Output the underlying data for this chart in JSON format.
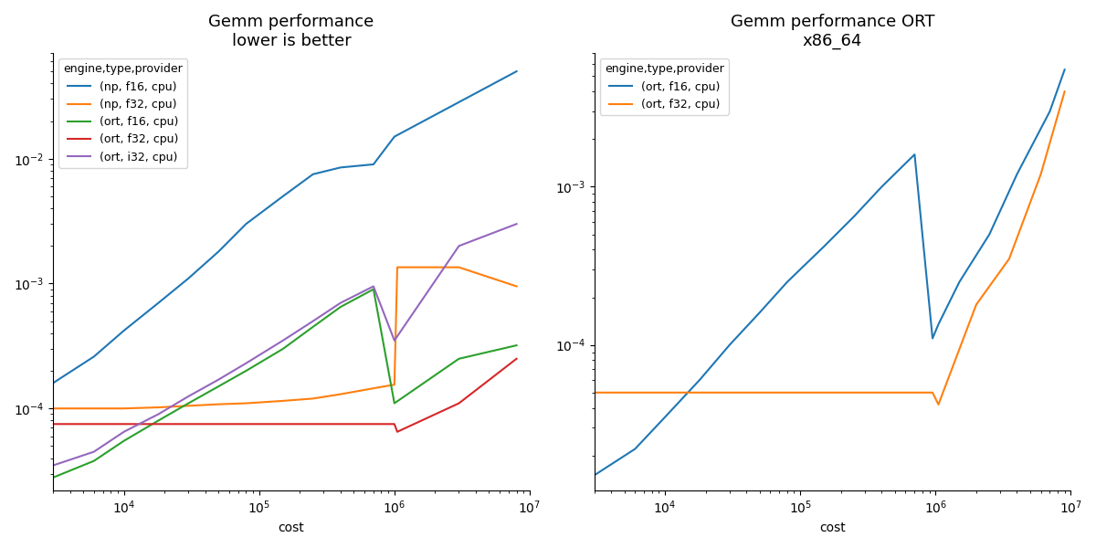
{
  "title_left": "Gemm performance\nlower is better",
  "title_right": "Gemm performance ORT\nx86_64",
  "xlabel": "cost",
  "legend_title": "engine,type,provider",
  "left": {
    "np_f16_cpu": {
      "label": "(np, f16, cpu)",
      "color": "#1f77b4",
      "x": [
        3000,
        6000,
        10000,
        18000,
        30000,
        50000,
        80000,
        150000,
        250000,
        400000,
        700000,
        1000000,
        8000000
      ],
      "y": [
        0.00016,
        0.00026,
        0.00042,
        0.0007,
        0.0011,
        0.0018,
        0.003,
        0.005,
        0.0075,
        0.0085,
        0.009,
        0.015,
        0.05
      ]
    },
    "np_f32_cpu": {
      "label": "(np, f32, cpu)",
      "color": "#ff7f0e",
      "x": [
        3000,
        6000,
        10000,
        18000,
        30000,
        50000,
        80000,
        150000,
        250000,
        400000,
        700000,
        1000000,
        1050000,
        3000000,
        8000000
      ],
      "y": [
        0.0001,
        0.0001,
        0.0001,
        0.000102,
        0.000105,
        0.000108,
        0.00011,
        0.000115,
        0.00012,
        0.00013,
        0.000145,
        0.000155,
        0.00135,
        0.00135,
        0.00095
      ]
    },
    "ort_f16_cpu": {
      "label": "(ort, f16, cpu)",
      "color": "#2ca02c",
      "x": [
        3000,
        6000,
        10000,
        18000,
        30000,
        50000,
        80000,
        150000,
        250000,
        400000,
        700000,
        1000000,
        3000000,
        8000000
      ],
      "y": [
        2.8e-05,
        3.8e-05,
        5.5e-05,
        8e-05,
        0.00011,
        0.00015,
        0.0002,
        0.0003,
        0.00045,
        0.00065,
        0.0009,
        0.00011,
        0.00025,
        0.00032
      ]
    },
    "ort_f32_cpu": {
      "label": "(ort, f32, cpu)",
      "color": "#d62728",
      "x": [
        3000,
        6000,
        10000,
        18000,
        30000,
        50000,
        80000,
        150000,
        250000,
        400000,
        700000,
        1000000,
        1050000,
        3000000,
        8000000
      ],
      "y": [
        7.5e-05,
        7.5e-05,
        7.5e-05,
        7.5e-05,
        7.5e-05,
        7.5e-05,
        7.5e-05,
        7.5e-05,
        7.5e-05,
        7.5e-05,
        7.5e-05,
        7.5e-05,
        6.5e-05,
        0.00011,
        0.00025
      ]
    },
    "ort_i32_cpu": {
      "label": "(ort, i32, cpu)",
      "color": "#9467bd",
      "x": [
        3000,
        6000,
        10000,
        18000,
        30000,
        50000,
        80000,
        150000,
        250000,
        400000,
        700000,
        1000000,
        3000000,
        8000000
      ],
      "y": [
        3.5e-05,
        4.5e-05,
        6.5e-05,
        9e-05,
        0.000125,
        0.00017,
        0.00023,
        0.00035,
        0.0005,
        0.0007,
        0.00095,
        0.00035,
        0.002,
        0.003
      ]
    }
  },
  "right": {
    "ort_f16_cpu": {
      "label": "(ort, f16, cpu)",
      "color": "#1f77b4",
      "x": [
        3000,
        6000,
        10000,
        18000,
        30000,
        50000,
        80000,
        150000,
        250000,
        400000,
        700000,
        950000,
        1050000,
        1500000,
        2500000,
        4000000,
        7000000,
        9000000
      ],
      "y": [
        1.5e-05,
        2.2e-05,
        3.5e-05,
        6e-05,
        0.0001,
        0.00016,
        0.00025,
        0.00042,
        0.00065,
        0.001,
        0.0016,
        0.00011,
        0.000135,
        0.00025,
        0.0005,
        0.0012,
        0.003,
        0.0055
      ]
    },
    "ort_f32_cpu": {
      "label": "(ort, f32, cpu)",
      "color": "#ff7f0e",
      "x": [
        3000,
        6000,
        10000,
        18000,
        30000,
        50000,
        80000,
        150000,
        250000,
        400000,
        700000,
        950000,
        1050000,
        2000000,
        3500000,
        6000000,
        9000000
      ],
      "y": [
        5e-05,
        5e-05,
        5e-05,
        5e-05,
        5e-05,
        5e-05,
        5e-05,
        5e-05,
        5e-05,
        5e-05,
        5e-05,
        5e-05,
        4.2e-05,
        0.00018,
        0.00035,
        0.0012,
        0.004
      ]
    }
  },
  "xlim": [
    3000,
    10000000.0
  ],
  "ylim_left": [
    2.2e-05,
    0.07
  ],
  "ylim_right": [
    1.2e-05,
    0.007
  ]
}
